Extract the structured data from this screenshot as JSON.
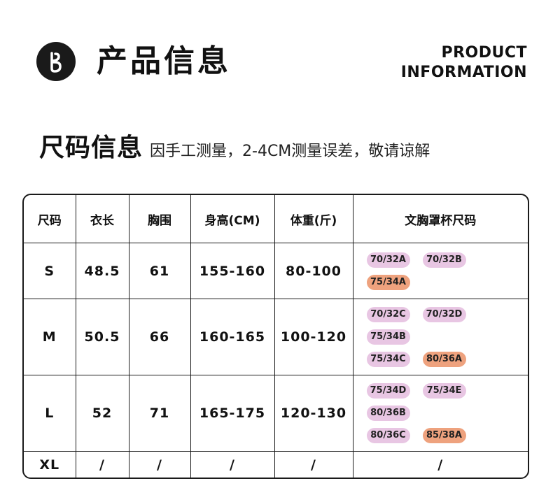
{
  "header": {
    "title_cn": "产品信息",
    "title_en_line1": "PRODUCT",
    "title_en_line2": "INFORMATION"
  },
  "size_section": {
    "heading": "尺码信息",
    "note": "因手工测量，2-4CM测量误差，敬请谅解"
  },
  "table": {
    "headers": [
      "尺码",
      "衣长",
      "胸围",
      "身高(CM)",
      "体重(斤)",
      "文胸罩杯尺码"
    ],
    "rows": [
      {
        "size": "S",
        "length": "48.5",
        "bust": "61",
        "height": "155-160",
        "weight": "80-100",
        "bra_sizes": [
          {
            "label": "70/32A",
            "color": "pink"
          },
          {
            "label": "70/32B",
            "color": "pink"
          },
          {
            "label": "75/34A",
            "color": "orange"
          }
        ]
      },
      {
        "size": "M",
        "length": "50.5",
        "bust": "66",
        "height": "160-165",
        "weight": "100-120",
        "bra_sizes": [
          {
            "label": "70/32C",
            "color": "pink"
          },
          {
            "label": "70/32D",
            "color": "pink"
          },
          {
            "label": "75/34B",
            "color": "pink"
          },
          {
            "label": "75/34C",
            "color": "pink"
          },
          {
            "label": "80/36A",
            "color": "orange"
          }
        ]
      },
      {
        "size": "L",
        "length": "52",
        "bust": "71",
        "height": "165-175",
        "weight": "120-130",
        "bra_sizes": [
          {
            "label": "75/34D",
            "color": "pink"
          },
          {
            "label": "75/34E",
            "color": "pink"
          },
          {
            "label": "80/36B",
            "color": "pink"
          },
          {
            "label": "80/36C",
            "color": "pink"
          },
          {
            "label": "85/38A",
            "color": "orange"
          }
        ]
      },
      {
        "size": "XL",
        "length": "/",
        "bust": "/",
        "height": "/",
        "weight": "/",
        "bra_text": "/"
      }
    ]
  },
  "colors": {
    "pink_pill": "#e8c6e3",
    "orange_pill": "#eea27e",
    "border": "#1a1a1a"
  }
}
